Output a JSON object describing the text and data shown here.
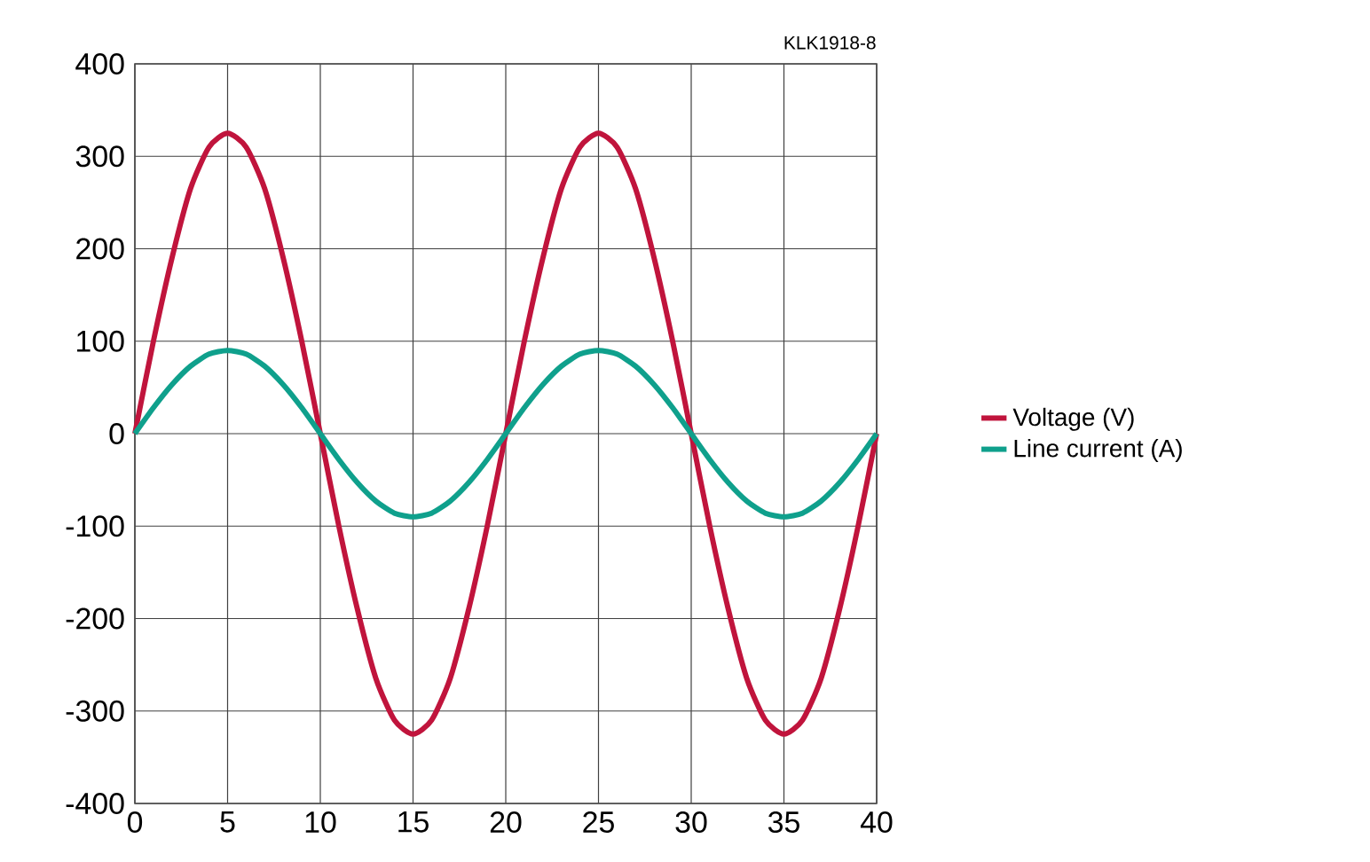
{
  "chart_data": {
    "type": "line",
    "x": [
      0,
      1,
      2,
      3,
      4,
      5,
      6,
      7,
      8,
      9,
      10,
      11,
      12,
      13,
      14,
      15,
      16,
      17,
      18,
      19,
      20,
      21,
      22,
      23,
      24,
      25,
      26,
      27,
      28,
      29,
      30,
      31,
      32,
      33,
      34,
      35,
      36,
      37,
      38,
      39,
      40
    ],
    "series": [
      {
        "name": "Voltage (V)",
        "color": "#c0143c",
        "values": [
          0,
          100,
          190,
          265,
          310,
          325,
          310,
          265,
          190,
          100,
          0,
          -100,
          -190,
          -265,
          -310,
          -325,
          -310,
          -265,
          -190,
          -100,
          0,
          100,
          190,
          265,
          310,
          325,
          310,
          265,
          190,
          100,
          0,
          -100,
          -190,
          -265,
          -310,
          -325,
          -310,
          -265,
          -190,
          -100,
          0
        ]
      },
      {
        "name": "Line current (A)",
        "color": "#0fa08c",
        "values": [
          0,
          28,
          53,
          73,
          86,
          90,
          86,
          73,
          53,
          28,
          0,
          -28,
          -53,
          -73,
          -86,
          -90,
          -86,
          -73,
          -53,
          -28,
          0,
          28,
          53,
          73,
          86,
          90,
          86,
          73,
          53,
          28,
          0,
          -28,
          -53,
          -73,
          -86,
          -90,
          -86,
          -73,
          -53,
          -28,
          0
        ]
      }
    ],
    "xlim": [
      0,
      40
    ],
    "xticks": [
      0,
      5,
      10,
      15,
      20,
      25,
      30,
      35,
      40
    ],
    "ylim": [
      -400,
      400
    ],
    "yticks": [
      -400,
      -300,
      -200,
      -100,
      0,
      100,
      200,
      300,
      400
    ],
    "grid": true,
    "legend": "right",
    "marker": "none",
    "line_style": "solid",
    "annotations": [
      "KLK1918-8"
    ]
  }
}
